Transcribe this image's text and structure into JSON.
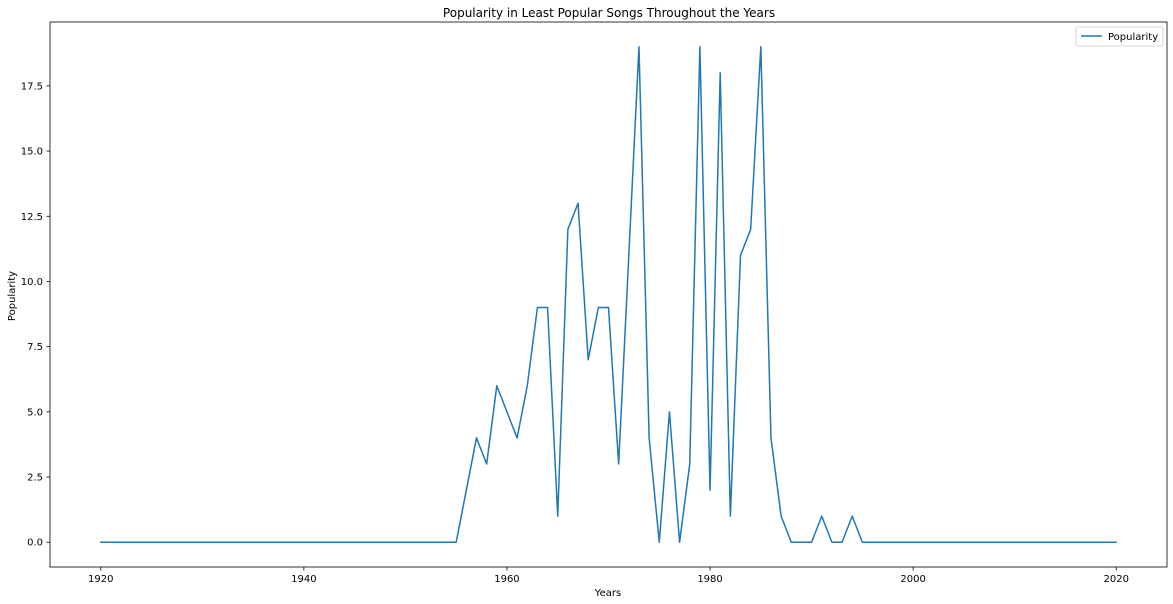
{
  "chart_data": {
    "type": "line",
    "title": "Popularity in Least Popular Songs Throughout the Years",
    "xlabel": "Years",
    "ylabel": "Popularity",
    "xlim": [
      1915,
      2025
    ],
    "ylim": [
      -0.95,
      19.95
    ],
    "x_ticks": [
      1920,
      1940,
      1960,
      1980,
      2000,
      2020
    ],
    "y_ticks": [
      0.0,
      2.5,
      5.0,
      7.5,
      10.0,
      12.5,
      15.0,
      17.5
    ],
    "x_tick_labels": [
      "1920",
      "1940",
      "1960",
      "1980",
      "2000",
      "2020"
    ],
    "y_tick_labels": [
      "0.0",
      "2.5",
      "5.0",
      "7.5",
      "10.0",
      "12.5",
      "15.0",
      "17.5"
    ],
    "grid": false,
    "legend_position": "top-right",
    "series": [
      {
        "name": "Popularity",
        "color": "#1f77b4",
        "x": [
          1920,
          1921,
          1922,
          1923,
          1924,
          1925,
          1926,
          1927,
          1928,
          1929,
          1930,
          1931,
          1932,
          1933,
          1934,
          1935,
          1936,
          1937,
          1938,
          1939,
          1940,
          1941,
          1942,
          1943,
          1944,
          1945,
          1946,
          1947,
          1948,
          1949,
          1950,
          1951,
          1952,
          1953,
          1954,
          1955,
          1956,
          1957,
          1958,
          1959,
          1960,
          1961,
          1962,
          1963,
          1964,
          1965,
          1966,
          1967,
          1968,
          1969,
          1970,
          1971,
          1972,
          1973,
          1974,
          1975,
          1976,
          1977,
          1978,
          1979,
          1980,
          1981,
          1982,
          1983,
          1984,
          1985,
          1986,
          1987,
          1988,
          1989,
          1990,
          1991,
          1992,
          1993,
          1994,
          1995,
          1996,
          1997,
          1998,
          1999,
          2000,
          2001,
          2002,
          2003,
          2004,
          2005,
          2006,
          2007,
          2008,
          2009,
          2010,
          2011,
          2012,
          2013,
          2014,
          2015,
          2016,
          2017,
          2018,
          2019,
          2020
        ],
        "values": [
          0,
          0,
          0,
          0,
          0,
          0,
          0,
          0,
          0,
          0,
          0,
          0,
          0,
          0,
          0,
          0,
          0,
          0,
          0,
          0,
          0,
          0,
          0,
          0,
          0,
          0,
          0,
          0,
          0,
          0,
          0,
          0,
          0,
          0,
          0,
          0,
          2,
          4,
          3,
          6,
          5,
          4,
          6,
          9,
          9,
          1,
          12,
          13,
          7,
          9,
          9,
          3,
          11,
          19,
          4,
          0,
          5,
          0,
          3,
          19,
          2,
          18,
          1,
          11,
          12,
          19,
          4,
          1,
          0,
          0,
          0,
          1,
          0,
          0,
          1,
          0,
          0,
          0,
          0,
          0,
          0,
          0,
          0,
          0,
          0,
          0,
          0,
          0,
          0,
          0,
          0,
          0,
          0,
          0,
          0,
          0,
          0,
          0,
          0,
          0,
          0
        ]
      }
    ]
  }
}
